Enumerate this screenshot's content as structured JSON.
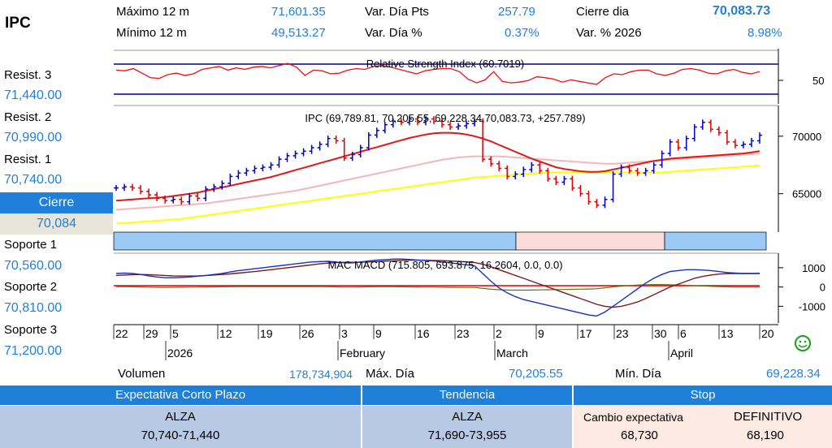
{
  "ticker": "IPC",
  "stats": {
    "max12_label": "Máximo 12 m",
    "max12_value": "71,601.35",
    "min12_label": "Mínimo 12 m",
    "min12_value": "49,513.27",
    "varpts_label": "Var. Día Pts",
    "varpts_value": "257.79",
    "varpct_label": "Var. Día %",
    "varpct_value": "0.37%",
    "close_label": "Cierre dia",
    "close_value": "70,083.73",
    "ytd_label": "Var. % 2026",
    "ytd_value": "8.98%"
  },
  "levels": {
    "r3_label": "Resist. 3",
    "r3_value": "71,440.00",
    "r2_label": "Resist. 2",
    "r2_value": "70,990.00",
    "r1_label": "Resist. 1",
    "r1_value": "70,740.00",
    "cierre_label": "Cierre",
    "cierre_value": "70,084",
    "s1_label": "Soporte 1",
    "s1_value": "70,560.00",
    "s2_label": "Soporte 2",
    "s2_value": "70,810.00",
    "s3_label": "Soporte 3",
    "s3_value": "71,200.00"
  },
  "volume": {
    "vol_label": "Volumen",
    "vol_value": "178,734,904",
    "maxd_label": "Máx. Día",
    "maxd_value": "70,205.55",
    "mind_label": "Mín. Día",
    "mind_value": "69,228.34"
  },
  "summary": {
    "h1": "Expectativa Corto Plazo",
    "h2": "Tendencia",
    "h3": "Stop",
    "exp_dir": "ALZA",
    "exp_range": "70,740-71,440",
    "tend_dir": "ALZA",
    "tend_range": "71,690-73,955",
    "stop_a_label": "Cambio expectativa",
    "stop_a_value": "68,730",
    "stop_b_label": "DEFINITIVO",
    "stop_b_value": "68,190"
  },
  "colors": {
    "accent": "#1f7fd9",
    "up": "#0000cc",
    "down": "#dd0000",
    "ma_yellow": "#ffff00",
    "ma_pink": "#f4b7b7",
    "trend_up": "#99c9f4",
    "trend_down": "#fadbd8"
  },
  "chart_data": [
    {
      "type": "line",
      "title": "Relative Strength Index (60.7019)",
      "ylabel": "",
      "y_ticks": [
        50
      ],
      "guide_lines": [
        70,
        30
      ],
      "values": [
        62,
        61,
        64,
        58,
        52,
        51,
        56,
        58,
        55,
        57,
        63,
        65,
        67,
        62,
        65,
        63,
        66,
        67,
        65,
        68,
        71,
        66,
        55,
        62,
        61,
        57,
        58,
        62,
        64,
        63,
        67,
        68,
        66,
        63,
        60,
        57,
        61,
        63,
        64,
        64,
        60,
        50,
        45,
        49,
        60,
        47,
        45,
        46,
        48,
        53,
        52,
        50,
        46,
        49,
        47,
        45,
        43,
        52,
        57,
        56,
        60,
        62,
        62,
        57,
        55,
        58,
        63,
        64,
        62,
        58,
        57,
        61,
        63,
        59,
        57,
        60
      ]
    },
    {
      "type": "candlestick",
      "title": "IPC (69,789.81, 70,205.55, 69,228.34,70,083.73, +257.789)",
      "y_ticks": [
        65000,
        70000
      ],
      "ylim": [
        61800,
        72600
      ],
      "x_tick_labels": [
        "22",
        "29",
        "5",
        "12",
        "19",
        "26",
        "3",
        "9",
        "16",
        "23",
        "2",
        "9",
        "17",
        "23",
        "30",
        "6",
        "13",
        "20"
      ],
      "month_labels": [
        "2026",
        "February",
        "March",
        "April"
      ],
      "close": [
        65500,
        65600,
        65500,
        65200,
        64900,
        64600,
        64400,
        64500,
        64300,
        64800,
        64600,
        65400,
        65600,
        65900,
        66500,
        66800,
        67000,
        67200,
        67300,
        67500,
        68000,
        68300,
        68500,
        68700,
        69000,
        69300,
        69800,
        69600,
        68100,
        68400,
        69000,
        70100,
        70500,
        71000,
        71300,
        71200,
        71500,
        71200,
        71500,
        71300,
        71000,
        70800,
        70900,
        71100,
        71300,
        68000,
        67600,
        67200,
        66500,
        66700,
        67100,
        67500,
        67000,
        66300,
        66000,
        66300,
        65500,
        65000,
        64300,
        64000,
        64500,
        66700,
        67300,
        67000,
        66800,
        67000,
        67500,
        68500,
        69500,
        69000,
        69800,
        70800,
        71200,
        70600,
        70300,
        69500,
        69200,
        69300,
        69600,
        70084
      ],
      "ma_red": [
        64400,
        64450,
        64500,
        64550,
        64600,
        64650,
        64700,
        64800,
        64900,
        65000,
        65100,
        65250,
        65400,
        65550,
        65700,
        65850,
        66000,
        66150,
        66300,
        66450,
        66650,
        66850,
        67050,
        67250,
        67450,
        67650,
        67850,
        68050,
        68250,
        68450,
        68650,
        68850,
        69050,
        69250,
        69450,
        69650,
        69850,
        70000,
        70150,
        70250,
        70300,
        70300,
        70250,
        70150,
        70000,
        69800,
        69550,
        69250,
        68950,
        68650,
        68350,
        68050,
        67800,
        67550,
        67300,
        67150,
        67050,
        66950,
        66900,
        66900,
        66950,
        67100,
        67250,
        67400,
        67550,
        67700,
        67850,
        67950,
        68050,
        68100,
        68150,
        68200,
        68250,
        68300,
        68350,
        68400,
        68450,
        68500,
        68600,
        68700
      ],
      "ma_pink": [
        63600,
        63650,
        63700,
        63750,
        63800,
        63850,
        63900,
        63950,
        64000,
        64050,
        64100,
        64150,
        64250,
        64350,
        64450,
        64550,
        64650,
        64750,
        64850,
        64950,
        65050,
        65150,
        65250,
        65400,
        65550,
        65700,
        65850,
        66000,
        66150,
        66300,
        66450,
        66600,
        66750,
        66900,
        67050,
        67200,
        67350,
        67500,
        67650,
        67800,
        67950,
        68050,
        68150,
        68200,
        68250,
        68250,
        68250,
        68250,
        68200,
        68150,
        68100,
        68050,
        68000,
        67950,
        67900,
        67850,
        67800,
        67750,
        67700,
        67650,
        67600,
        67600,
        67650,
        67700,
        67750,
        67800,
        67850,
        67900,
        67950,
        68000,
        68050,
        68100,
        68150,
        68200,
        68250,
        68300,
        68350,
        68400,
        68450,
        68500
      ],
      "ma_yellow": [
        62400,
        62450,
        62500,
        62550,
        62600,
        62650,
        62700,
        62750,
        62800,
        62900,
        63000,
        63100,
        63200,
        63300,
        63400,
        63500,
        63600,
        63700,
        63800,
        63900,
        64000,
        64100,
        64200,
        64300,
        64400,
        64500,
        64600,
        64700,
        64800,
        64900,
        65000,
        65100,
        65200,
        65300,
        65400,
        65500,
        65600,
        65700,
        65800,
        65900,
        66000,
        66100,
        66200,
        66300,
        66400,
        66450,
        66500,
        66550,
        66600,
        66650,
        66700,
        66750,
        66800,
        66850,
        66850,
        66850,
        66850,
        66850,
        66850,
        66850,
        66850,
        66850,
        66850,
        66850,
        66850,
        66850,
        66850,
        66850,
        66900,
        66950,
        67000,
        67050,
        67100,
        67150,
        67200,
        67250,
        67300,
        67350,
        67400,
        67450
      ]
    },
    {
      "type": "line",
      "title": "MAC MACD (715.805, 693.875, 16.2604, 0.0, 0.0)",
      "y_ticks": [
        1000,
        0,
        -1000
      ],
      "ylim": [
        -1700,
        1500
      ],
      "macd": [
        700,
        720,
        700,
        650,
        580,
        520,
        480,
        480,
        500,
        520,
        560,
        600,
        650,
        700,
        780,
        850,
        900,
        950,
        1000,
        1050,
        1100,
        1150,
        1200,
        1250,
        1300,
        1320,
        1330,
        1300,
        1250,
        1250,
        1300,
        1350,
        1400,
        1420,
        1450,
        1450,
        1430,
        1400,
        1380,
        1350,
        1300,
        1250,
        1200,
        1150,
        1100,
        700,
        300,
        -50,
        -300,
        -500,
        -650,
        -750,
        -850,
        -950,
        -1050,
        -1150,
        -1250,
        -1350,
        -1450,
        -1500,
        -1300,
        -1000,
        -700,
        -400,
        -100,
        200,
        450,
        650,
        800,
        850,
        900,
        900,
        880,
        850,
        800,
        750,
        720,
        700,
        700,
        716
      ],
      "signal": [
        600,
        620,
        640,
        650,
        640,
        620,
        600,
        580,
        570,
        570,
        580,
        600,
        620,
        650,
        680,
        720,
        760,
        800,
        850,
        900,
        950,
        1000,
        1050,
        1100,
        1150,
        1200,
        1240,
        1270,
        1280,
        1280,
        1290,
        1300,
        1320,
        1340,
        1360,
        1380,
        1390,
        1390,
        1390,
        1380,
        1370,
        1350,
        1330,
        1300,
        1270,
        1180,
        1050,
        900,
        750,
        600,
        450,
        300,
        150,
        0,
        -150,
        -300,
        -450,
        -600,
        -750,
        -900,
        -1000,
        -1050,
        -1000,
        -900,
        -780,
        -600,
        -400,
        -200,
        0,
        150,
        300,
        450,
        550,
        620,
        670,
        690,
        700,
        700,
        700,
        694
      ],
      "hist": [
        100,
        100,
        60,
        0,
        -60,
        -100,
        -120,
        -100,
        -70,
        -50,
        -20,
        0,
        30,
        50,
        100,
        130,
        140,
        150,
        150,
        150,
        150,
        150,
        150,
        150,
        150,
        120,
        90,
        30,
        -30,
        -30,
        10,
        50,
        80,
        80,
        90,
        70,
        40,
        10,
        -10,
        -30,
        -70,
        -100,
        -130,
        -150,
        -170,
        -480,
        -750,
        -950,
        -1050,
        -1100,
        -1100,
        -1050,
        -1000,
        -950,
        -900,
        -850,
        -800,
        -750,
        -700,
        -600,
        -300,
        50,
        300,
        500,
        680,
        800,
        850,
        850,
        800,
        700,
        600,
        450,
        330,
        230,
        130,
        60,
        20,
        0,
        0,
        16
      ]
    }
  ]
}
